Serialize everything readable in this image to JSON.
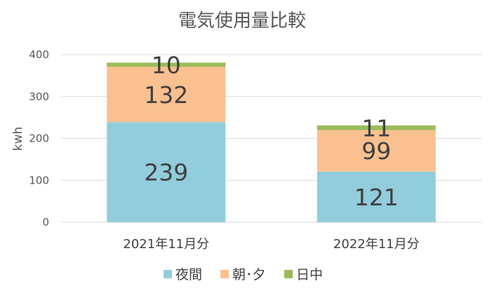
{
  "chart_data": {
    "type": "bar",
    "stacked": true,
    "title": "電気使用量比較",
    "xlabel": "",
    "ylabel": "kwh",
    "ylim": [
      0,
      400
    ],
    "yticks": [
      "0",
      "100",
      "200",
      "300",
      "400"
    ],
    "categories": [
      "2021年11月分",
      "2022年11月分"
    ],
    "series": [
      {
        "name": "夜間",
        "values": [
          239,
          121
        ],
        "color": "#92cddc"
      },
      {
        "name": "朝･夕",
        "values": [
          132,
          99
        ],
        "color": "#fac090"
      },
      {
        "name": "日中",
        "values": [
          10,
          11
        ],
        "color": "#9bbb59"
      }
    ],
    "grid": true,
    "legend": "bottom",
    "data_labels": true
  }
}
